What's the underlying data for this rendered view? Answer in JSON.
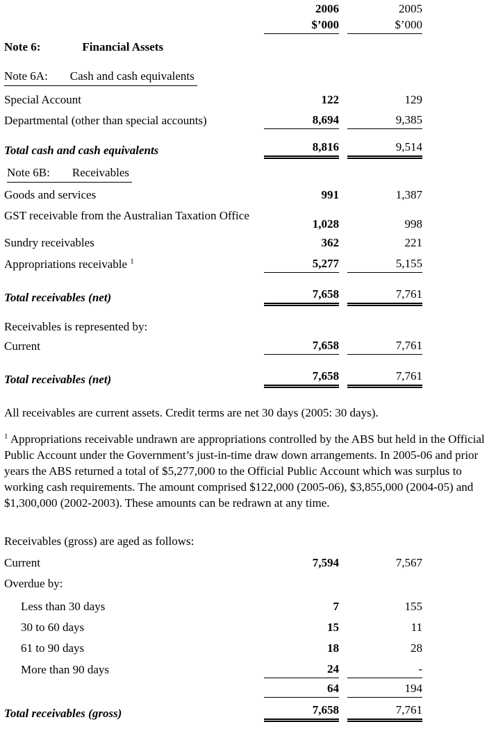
{
  "columns": {
    "y2006": "2006",
    "y2005": "2005",
    "unit2006": "$’000",
    "unit2005": "$’000"
  },
  "note6": {
    "label": "Note 6:",
    "title": "Financial Assets"
  },
  "note6a": {
    "label": "Note 6A:",
    "title": "Cash and cash equivalents",
    "rows": [
      {
        "label": "Special Account",
        "v2006": "122",
        "v2005": "129"
      },
      {
        "label": "Departmental (other than special accounts)",
        "v2006": "8,694",
        "v2005": "9,385"
      }
    ],
    "total": {
      "label": "Total cash and cash equivalents",
      "v2006": "8,816",
      "v2005": "9,514"
    }
  },
  "note6b": {
    "label": "Note 6B:",
    "title": "Receivables",
    "rows": [
      {
        "label": "Goods and services",
        "v2006": "991",
        "v2005": "1,387"
      },
      {
        "label": "GST receivable from the Australian Taxation Office",
        "v2006": "1,028",
        "v2005": "998"
      },
      {
        "label": "Sundry receivables",
        "v2006": "362",
        "v2005": "221"
      },
      {
        "label": "Appropriations receivable",
        "footnote_ref": "1",
        "v2006": "5,277",
        "v2005": "5,155"
      }
    ],
    "total_net": {
      "label": "Total receivables (net)",
      "v2006": "7,658",
      "v2005": "7,761"
    },
    "represented_by_label": "Receivables is represented by:",
    "current": {
      "label": "Current",
      "v2006": "7,658",
      "v2005": "7,761"
    },
    "total_net_2": {
      "label": "Total receivables (net)",
      "v2006": "7,658",
      "v2005": "7,761"
    }
  },
  "notes": {
    "credit_terms": "All receivables are current assets. Credit terms are net 30 days (2005: 30 days).",
    "footnote_marker": "1",
    "footnote_text": "Appropriations receivable undrawn are appropriations controlled by the ABS but held in the Official Public Account under the Government’s just-in-time draw down arrangements. In 2005-06 and prior years the ABS returned a total of $5,277,000 to the Official Public Account which was surplus to working cash requirements. The amount comprised $122,000 (2005-06), $3,855,000 (2004-05) and $1,300,000 (2002-2003).  These amounts can be redrawn at any time.",
    "aged_intro": "Receivables (gross) are aged as follows:"
  },
  "aged": {
    "current": {
      "label": "Current",
      "v2006": "7,594",
      "v2005": "7,567"
    },
    "overdue_label": "Overdue by:",
    "rows": [
      {
        "label": "Less than 30 days",
        "v2006": "7",
        "v2005": "155"
      },
      {
        "label": "30 to 60 days",
        "v2006": "15",
        "v2005": "11"
      },
      {
        "label": "61 to 90 days",
        "v2006": "18",
        "v2005": "28"
      },
      {
        "label": "More than 90 days",
        "v2006": "24",
        "v2005": "-"
      }
    ],
    "subtotal": {
      "v2006": "64",
      "v2005": "194"
    },
    "total_gross": {
      "label": "Total receivables (gross)",
      "v2006": "7,658",
      "v2005": "7,761"
    }
  }
}
